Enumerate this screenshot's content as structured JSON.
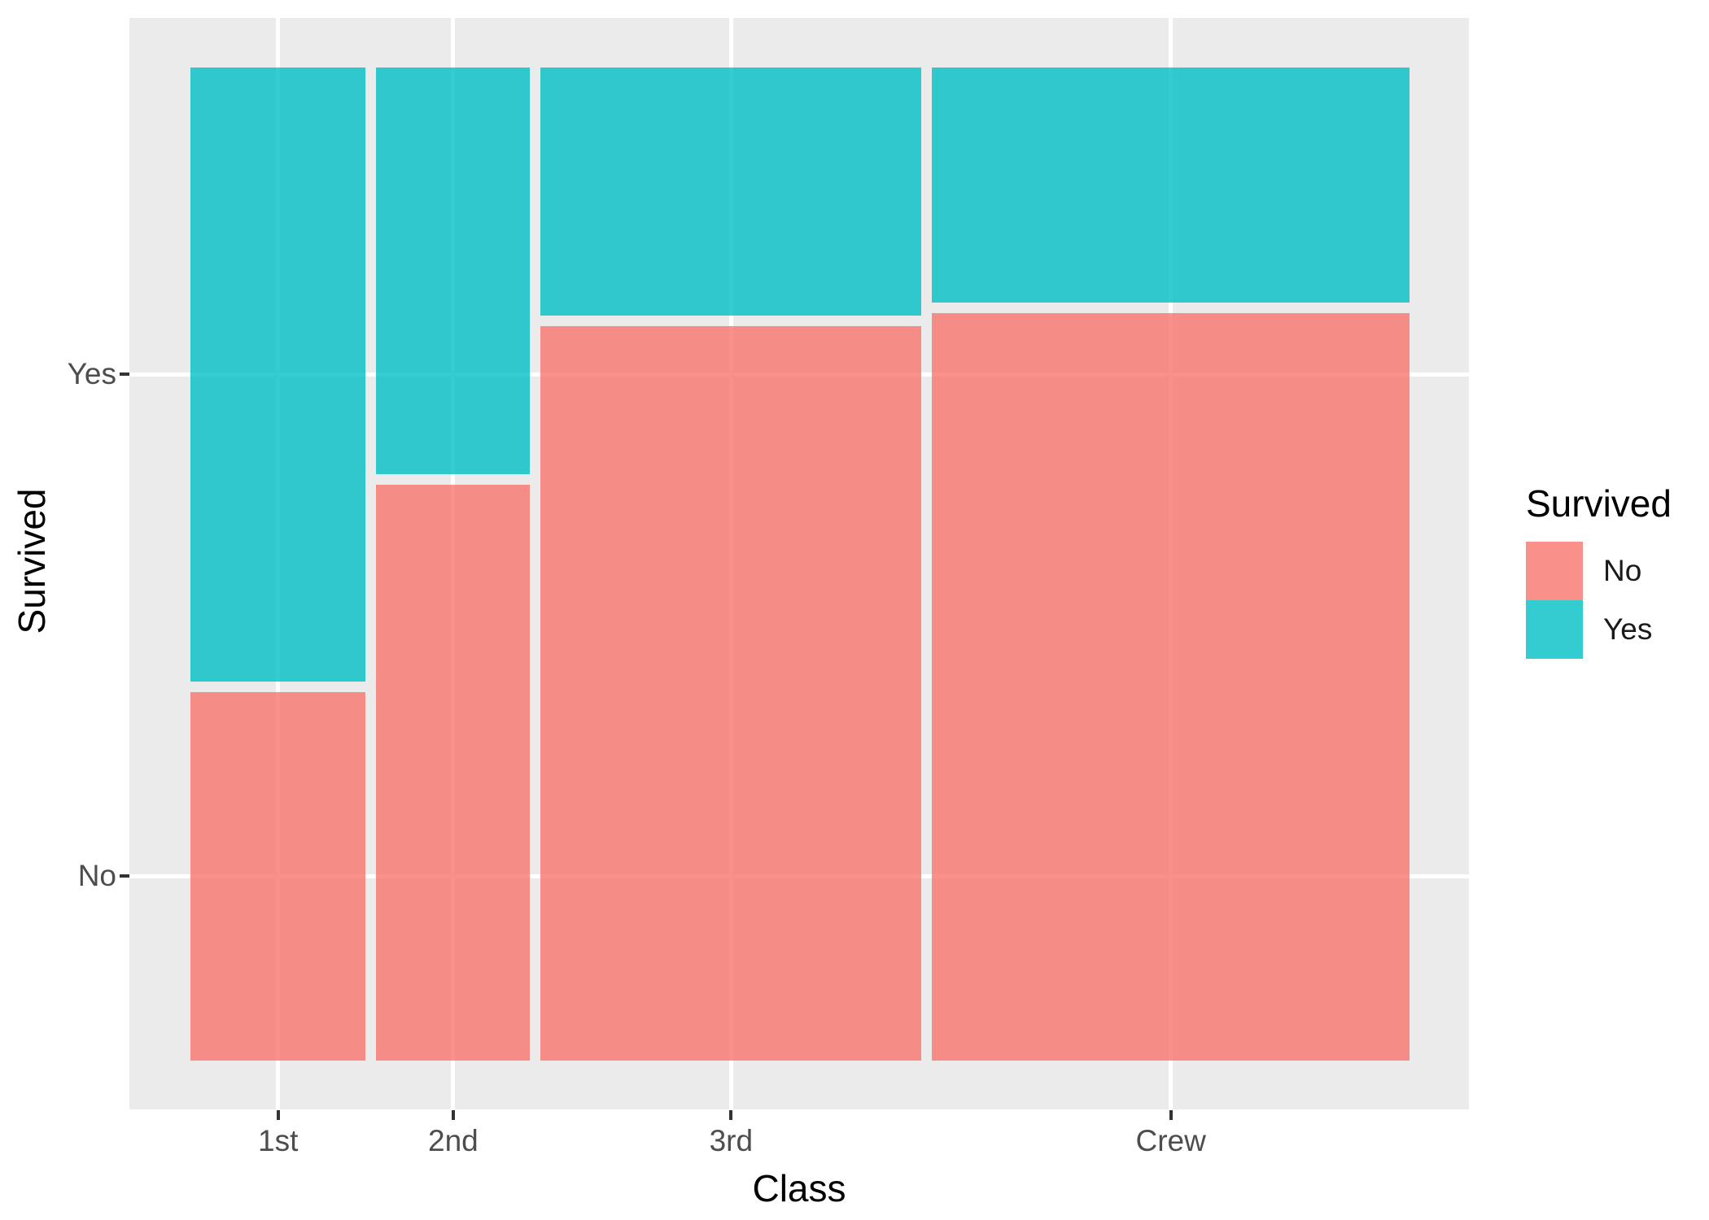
{
  "figure": {
    "background": "#FFFFFF",
    "panel_background": "#EBEBEB",
    "gridline_color": "#FFFFFF",
    "tick_mark_color": "#333333",
    "axis_text_color": "#4D4D4D",
    "axis_title_color": "#000000"
  },
  "axes": {
    "x": {
      "title": "Class",
      "tick_labels": [
        "1st",
        "2nd",
        "3rd",
        "Crew"
      ]
    },
    "y": {
      "title": "Survived",
      "tick_labels": [
        "Yes",
        "No"
      ]
    }
  },
  "legend": {
    "title": "Survived",
    "position": "right",
    "items": [
      {
        "label": "No",
        "color": "#F8766D"
      },
      {
        "label": "Yes",
        "color": "#00BFC4"
      }
    ]
  },
  "chart_data": {
    "type": "mosaic",
    "title": "",
    "xlabel": "Class",
    "ylabel": "Survived",
    "legend_title": "Survived",
    "legend_position": "right",
    "grid": true,
    "x_categories": [
      "1st",
      "2nd",
      "3rd",
      "Crew"
    ],
    "fill_categories": [
      "No",
      "Yes"
    ],
    "stack_order_top_to_bottom": [
      "Yes",
      "No"
    ],
    "counts": {
      "1st": {
        "No": 122,
        "Yes": 203
      },
      "2nd": {
        "No": 167,
        "Yes": 118
      },
      "3rd": {
        "No": 528,
        "Yes": 178
      },
      "Crew": {
        "No": 673,
        "Yes": 212
      }
    },
    "column_width_share": {
      "1st": 0.148,
      "2nd": 0.129,
      "3rd": 0.321,
      "Crew": 0.402
    },
    "survived_share_within_class": {
      "1st": 0.625,
      "2nd": 0.414,
      "3rd": 0.252,
      "Crew": 0.24
    },
    "colors": {
      "No": "#F8766D",
      "Yes": "#00BFC4"
    },
    "fill_alpha": 0.8
  }
}
